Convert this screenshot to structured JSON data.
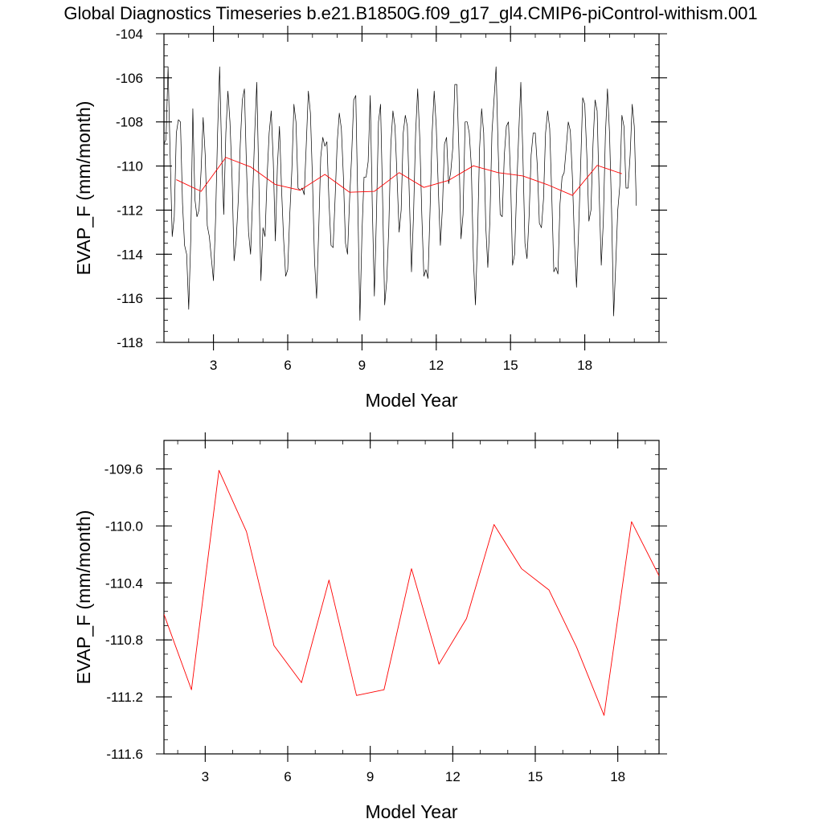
{
  "title": "Global Diagnostics Timeseries b.e21.B1850G.f09_g17_gl4.CMIP6-piControl-withism.001",
  "colors": {
    "monthly": "#000000",
    "annual": "#ff0000",
    "axis": "#000000"
  },
  "chart_data": [
    {
      "type": "line",
      "xlabel": "Model Year",
      "ylabel": "EVAP_F (mm/month)",
      "xlim": [
        1,
        21
      ],
      "ylim": [
        -118,
        -104
      ],
      "xticks": [
        "3",
        "6",
        "9",
        "12",
        "15",
        "18"
      ],
      "yticks": [
        "-104",
        "-106",
        "-108",
        "-110",
        "-112",
        "-114",
        "-116",
        "-118"
      ],
      "series": [
        {
          "kind": "monthly",
          "x_start": 1.0,
          "x_step": 0.08333,
          "values": [
            -109,
            -108.8,
            -105.5,
            -109.5,
            -113.2,
            -112.3,
            -108.5,
            -107.9,
            -108,
            -111.7,
            -113.6,
            -114,
            -116.5,
            -113.3,
            -107.4,
            -111.5,
            -112.3,
            -112,
            -110.2,
            -107.8,
            -109.5,
            -112.7,
            -113.2,
            -114.2,
            -115.2,
            -112.5,
            -108.5,
            -105.5,
            -109.5,
            -112.2,
            -108.5,
            -106.6,
            -108,
            -110.5,
            -114.3,
            -113.4,
            -111.6,
            -109,
            -107,
            -106.5,
            -110,
            -113,
            -114,
            -111.4,
            -108.5,
            -106.2,
            -110.7,
            -115.2,
            -112.8,
            -113.2,
            -110.5,
            -108.5,
            -107.5,
            -109.8,
            -113.4,
            -110,
            -108.2,
            -111,
            -113.3,
            -115,
            -114.7,
            -112.2,
            -110.2,
            -107.2,
            -108,
            -111,
            -111.1,
            -111,
            -111.3,
            -109,
            -106.6,
            -107.6,
            -110.6,
            -114.3,
            -116,
            -113,
            -109.6,
            -108.7,
            -109.1,
            -108.9,
            -111.6,
            -113.6,
            -113.7,
            -111.4,
            -108.9,
            -107.6,
            -108.3,
            -110.5,
            -113.5,
            -114,
            -111.5,
            -109.5,
            -107,
            -106.8,
            -111.8,
            -117,
            -113,
            -110.5,
            -110.5,
            -109.8,
            -106.8,
            -111.8,
            -115.9,
            -112.3,
            -108,
            -107.2,
            -111.5,
            -116.3,
            -115.2,
            -112.8,
            -109,
            -107.5,
            -108.2,
            -110.5,
            -113,
            -112,
            -108.5,
            -107.7,
            -108.2,
            -111.5,
            -114.8,
            -112.2,
            -108.5,
            -106.5,
            -108.7,
            -112.2,
            -115,
            -114.7,
            -115.1,
            -112,
            -108.5,
            -106.6,
            -108.2,
            -111,
            -113.6,
            -111.9,
            -109,
            -108.7,
            -110.8,
            -110.3,
            -109.2,
            -106.3,
            -106.3,
            -109.3,
            -113.3,
            -112.2,
            -108,
            -108,
            -108.5,
            -110,
            -114.2,
            -116.3,
            -113.3,
            -109.2,
            -107.4,
            -108.5,
            -112.7,
            -114.6,
            -112.5,
            -108.5,
            -107,
            -105.5,
            -109.2,
            -112.2,
            -112.3,
            -109.5,
            -108.2,
            -108,
            -110.4,
            -114.5,
            -114,
            -111,
            -108.5,
            -106.2,
            -109.5,
            -113.5,
            -114.2,
            -112.3,
            -109.5,
            -108.5,
            -108.5,
            -110,
            -112.6,
            -112.8,
            -111.5,
            -108.5,
            -107.5,
            -108.3,
            -111.3,
            -114.8,
            -114.6,
            -114.9,
            -111.7,
            -110.5,
            -110.3,
            -109.2,
            -108,
            -108.4,
            -110.5,
            -113.4,
            -115.5,
            -113,
            -110,
            -106.9,
            -107.2,
            -109.5,
            -112.5,
            -112,
            -109,
            -107,
            -107.5,
            -111.3,
            -114.5,
            -112.5,
            -108.6,
            -106.5,
            -108.5,
            -112,
            -116.8,
            -114.5,
            -112,
            -110.9,
            -107.7,
            -108.2,
            -111,
            -111,
            -109.5,
            -107.2,
            -108.2,
            -111.8
          ]
        },
        {
          "kind": "annual",
          "x_start": 1.5,
          "x_step": 1.0,
          "values": [
            -110.62,
            -111.15,
            -109.61,
            -110.04,
            -110.84,
            -111.1,
            -110.38,
            -111.19,
            -111.15,
            -110.3,
            -110.97,
            -110.65,
            -109.99,
            -110.3,
            -110.45,
            -110.85,
            -111.33,
            -109.97,
            -110.35
          ]
        }
      ]
    },
    {
      "type": "line",
      "xlabel": "Model Year",
      "ylabel": "EVAP_F (mm/month)",
      "xlim": [
        1.5,
        19.5
      ],
      "ylim": [
        -111.6,
        -109.4
      ],
      "xticks": [
        "3",
        "6",
        "9",
        "12",
        "15",
        "18"
      ],
      "yticks": [
        "-109.6",
        "-110.0",
        "-110.4",
        "-110.8",
        "-111.2",
        "-111.6"
      ],
      "series": [
        {
          "kind": "annual",
          "x_start": 1.5,
          "x_step": 1.0,
          "values": [
            -110.62,
            -111.15,
            -109.61,
            -110.04,
            -110.84,
            -111.1,
            -110.38,
            -111.19,
            -111.15,
            -110.3,
            -110.97,
            -110.65,
            -109.99,
            -110.3,
            -110.45,
            -110.85,
            -111.33,
            -109.97,
            -110.35
          ]
        }
      ]
    }
  ]
}
